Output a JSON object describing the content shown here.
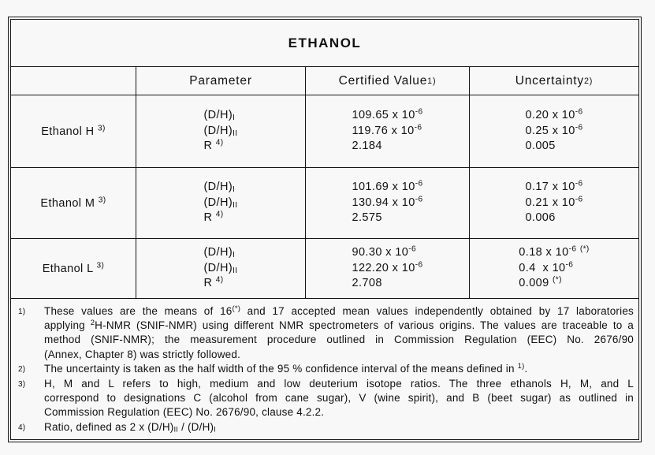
{
  "page": {
    "background": "#f8f8f8",
    "text_color": "#111111",
    "border_color": "#151515"
  },
  "table": {
    "title": "ETHANOL",
    "headers": {
      "sample": "",
      "parameter": [
        [
          "Parameter"
        ]
      ],
      "certified_value": [
        [
          "Certified Value "
        ],
        [
          "1)",
          "sup"
        ]
      ],
      "uncertainty": [
        [
          "Uncertainty "
        ],
        [
          "2)",
          "sup"
        ]
      ]
    },
    "rows": [
      {
        "sample": [
          [
            "Ethanol H "
          ],
          [
            "3)",
            "sup"
          ]
        ],
        "parameter": [
          [
            [
              "(D/H)"
            ],
            [
              "I",
              "sub"
            ]
          ],
          [
            [
              "(D/H)"
            ],
            [
              "II",
              "sub"
            ]
          ],
          [
            [
              "R "
            ],
            [
              "4)",
              "sup"
            ]
          ]
        ],
        "certified": [
          [
            [
              "109.65 x 10"
            ],
            [
              "-6",
              "sup"
            ]
          ],
          [
            [
              "119.76 x 10"
            ],
            [
              "-6",
              "sup"
            ]
          ],
          [
            [
              "2.184"
            ]
          ]
        ],
        "uncertainty": [
          [
            [
              "0.20 x 10"
            ],
            [
              "-6",
              "sup"
            ]
          ],
          [
            [
              "0.25 x 10"
            ],
            [
              "-6",
              "sup"
            ]
          ],
          [
            [
              "0.005"
            ]
          ]
        ]
      },
      {
        "sample": [
          [
            "Ethanol M "
          ],
          [
            "3)",
            "sup"
          ]
        ],
        "parameter": [
          [
            [
              "(D/H)"
            ],
            [
              "I",
              "sub"
            ]
          ],
          [
            [
              "(D/H)"
            ],
            [
              "II",
              "sub"
            ]
          ],
          [
            [
              "R "
            ],
            [
              "4)",
              "sup"
            ]
          ]
        ],
        "certified": [
          [
            [
              "101.69 x 10"
            ],
            [
              "-6",
              "sup"
            ]
          ],
          [
            [
              "130.94 x 10"
            ],
            [
              "-6",
              "sup"
            ]
          ],
          [
            [
              "2.575"
            ]
          ]
        ],
        "uncertainty": [
          [
            [
              "0.17 x 10"
            ],
            [
              "-6",
              "sup"
            ]
          ],
          [
            [
              "0.21 x 10"
            ],
            [
              "-6",
              "sup"
            ]
          ],
          [
            [
              "0.006"
            ]
          ]
        ]
      },
      {
        "sample": [
          [
            "Ethanol L "
          ],
          [
            "3)",
            "sup"
          ]
        ],
        "parameter": [
          [
            [
              "(D/H)"
            ],
            [
              "I",
              "sub"
            ]
          ],
          [
            [
              "(D/H)"
            ],
            [
              "II",
              "sub"
            ]
          ],
          [
            [
              "R "
            ],
            [
              "4)",
              "sup"
            ]
          ]
        ],
        "certified": [
          [
            [
              "90.30 x 10"
            ],
            [
              "-6",
              "sup"
            ]
          ],
          [
            [
              "122.20 x 10"
            ],
            [
              "-6",
              "sup"
            ]
          ],
          [
            [
              "2.708"
            ]
          ]
        ],
        "uncertainty": [
          [
            [
              "0.18 x 10"
            ],
            [
              "-6",
              "sup"
            ],
            [
              " "
            ],
            [
              "(*)",
              "sup"
            ]
          ],
          [
            [
              "0.4  x 10"
            ],
            [
              "-6",
              "sup"
            ]
          ],
          [
            [
              "0.009 "
            ],
            [
              "(*)",
              "sup"
            ]
          ]
        ]
      }
    ],
    "footnotes": [
      {
        "marker": "1)",
        "lines": [
          {
            "justify": true,
            "runs": [
              [
                "These values are the means of 16"
              ],
              [
                "(*)",
                "sup"
              ],
              [
                " and 17 accepted mean values independently obtained by 17 laboratories"
              ]
            ]
          },
          {
            "justify": true,
            "runs": [
              [
                "applying "
              ],
              [
                "2",
                "sup"
              ],
              [
                "H-NMR (SNIF-NMR) using different NMR spectrometers of various origins. The values are traceable to a"
              ]
            ]
          },
          {
            "justify": true,
            "runs": [
              [
                "method (SNIF-NMR); the measurement procedure outlined in Commission Regulation (EEC) No. 2676/90"
              ]
            ]
          },
          {
            "justify": false,
            "runs": [
              [
                "(Annex, Chapter 8) was strictly followed."
              ]
            ]
          }
        ]
      },
      {
        "marker": "2)",
        "lines": [
          {
            "justify": false,
            "runs": [
              [
                "The uncertainty is taken as the half width of the 95 % confidence interval of the means defined in "
              ],
              [
                "1)",
                "sup"
              ],
              [
                "."
              ]
            ]
          }
        ]
      },
      {
        "marker": "3)",
        "lines": [
          {
            "justify": true,
            "runs": [
              [
                "H, M and L refers to high, medium and low deuterium isotope ratios. The three ethanols H, M, and L"
              ]
            ]
          },
          {
            "justify": true,
            "runs": [
              [
                "correspond to designations C (alcohol from cane sugar), V (wine spirit), and B (beet sugar) as outlined in"
              ]
            ]
          },
          {
            "justify": false,
            "runs": [
              [
                "Commission Regulation (EEC) No. 2676/90, clause 4.2.2."
              ]
            ]
          }
        ]
      },
      {
        "marker": "4)",
        "lines": [
          {
            "justify": false,
            "runs": [
              [
                "Ratio, defined as 2 x (D/H)"
              ],
              [
                "II",
                "sub"
              ],
              [
                " / (D/H)"
              ],
              [
                "I",
                "sub"
              ]
            ]
          }
        ]
      }
    ]
  }
}
